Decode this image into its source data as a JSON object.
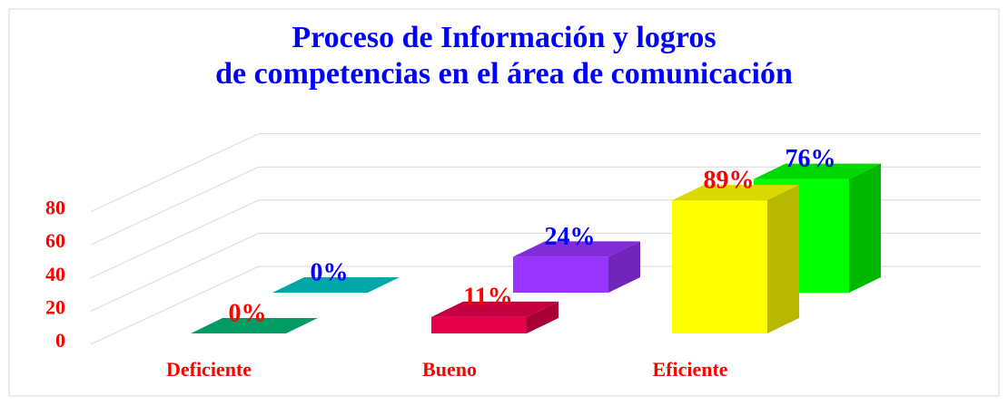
{
  "chart_data": {
    "type": "bar3d",
    "title": "Proceso de Información y logros de competencias en el área de comunicación",
    "categories": [
      "Deficiente",
      "Bueno",
      "Eficiente"
    ],
    "series": [
      {
        "colors": [
          "#00b876",
          "#e6004c",
          "#ffff00"
        ],
        "label_color": "#ff0000",
        "values": [
          0,
          11,
          89
        ],
        "value_labels": [
          "0%",
          "11%",
          "89%"
        ]
      },
      {
        "colors": [
          "#00c4c4",
          "#9933ff",
          "#00ff00"
        ],
        "label_color": "#0000ff",
        "values": [
          0,
          24,
          76
        ],
        "value_labels": [
          "0%",
          "24%",
          "76%"
        ]
      }
    ],
    "ylim": [
      0,
      100
    ],
    "yticks": [
      0,
      20,
      40,
      60,
      80
    ],
    "grid": true
  }
}
